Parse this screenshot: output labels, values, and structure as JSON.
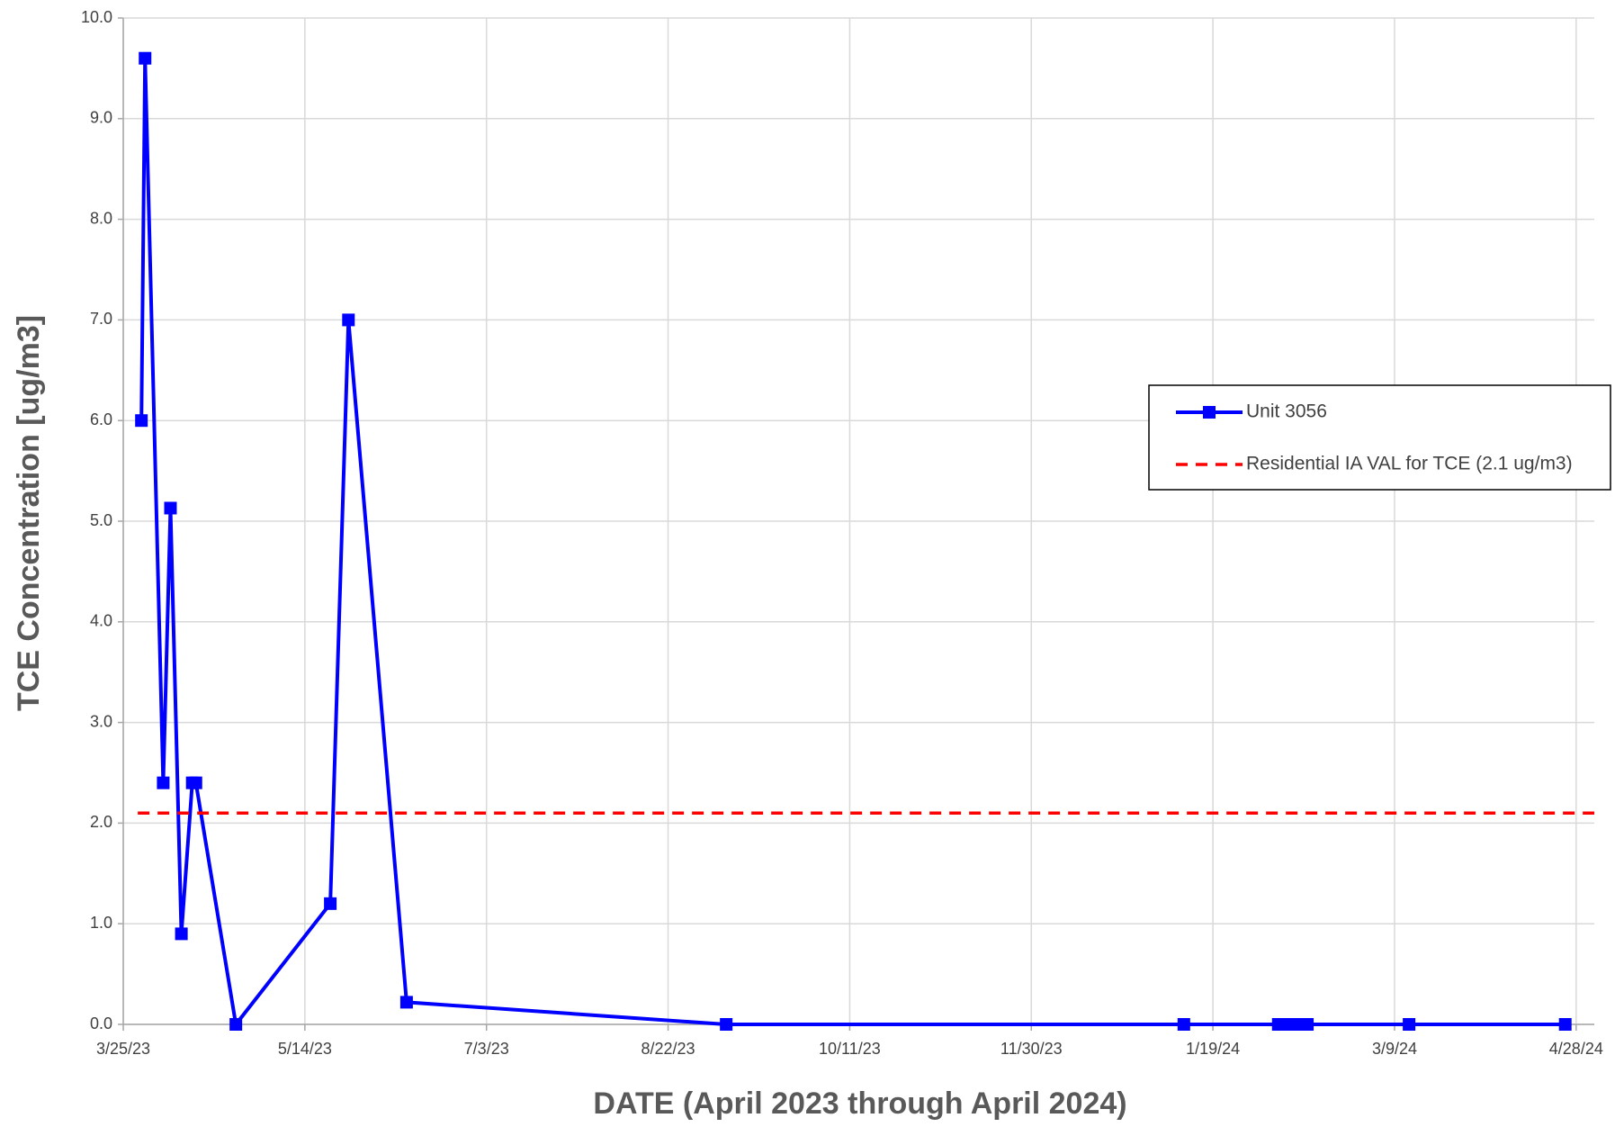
{
  "chart_data": {
    "type": "line",
    "xlabel": "DATE  (April 2023 through April 2024)",
    "ylabel": "TCE Concentration  [ug/m3]",
    "xlim": [
      "2023-03-25",
      "2024-05-03"
    ],
    "xticks": [
      {
        "value": "2023-03-25",
        "label": "3/25/23"
      },
      {
        "value": "2023-05-14",
        "label": "5/14/23"
      },
      {
        "value": "2023-07-03",
        "label": "7/3/23"
      },
      {
        "value": "2023-08-22",
        "label": "8/22/23"
      },
      {
        "value": "2023-10-11",
        "label": "10/11/23"
      },
      {
        "value": "2023-11-30",
        "label": "11/30/23"
      },
      {
        "value": "2024-01-19",
        "label": "1/19/24"
      },
      {
        "value": "2024-03-09",
        "label": "3/9/24"
      },
      {
        "value": "2024-04-28",
        "label": "4/28/24"
      }
    ],
    "ylim": [
      0,
      10
    ],
    "yticks": [
      {
        "value": 0,
        "label": "0.0"
      },
      {
        "value": 1,
        "label": "1.0"
      },
      {
        "value": 2,
        "label": "2.0"
      },
      {
        "value": 3,
        "label": "3.0"
      },
      {
        "value": 4,
        "label": "4.0"
      },
      {
        "value": 5,
        "label": "5.0"
      },
      {
        "value": 6,
        "label": "6.0"
      },
      {
        "value": 7,
        "label": "7.0"
      },
      {
        "value": 8,
        "label": "8.0"
      },
      {
        "value": 9,
        "label": "9.0"
      },
      {
        "value": 10,
        "label": "10.0"
      }
    ],
    "grid": true,
    "legend": "right",
    "series": [
      {
        "name": "Unit 3056",
        "color": "#0000ff",
        "marker": "square",
        "x": [
          "2023-03-30",
          "2023-03-31",
          "2023-04-05",
          "2023-04-07",
          "2023-04-10",
          "2023-04-13",
          "2023-04-14",
          "2023-04-25",
          "2023-05-21",
          "2023-05-26",
          "2023-06-11",
          "2023-09-07",
          "2024-01-11",
          "2024-02-06",
          "2024-02-08",
          "2024-02-10",
          "2024-02-12",
          "2024-02-14",
          "2024-03-13",
          "2024-04-25"
        ],
        "values": [
          6.0,
          9.6,
          2.4,
          5.13,
          0.9,
          2.4,
          2.4,
          0,
          1.2,
          7.0,
          0.22,
          0,
          0,
          0,
          0,
          0,
          0,
          0,
          0,
          0
        ]
      },
      {
        "name": "Residential IA VAL for TCE (2.1 ug/m3)",
        "color": "#ff0000",
        "dash": true,
        "x": [
          "2023-03-29",
          "2024-05-03"
        ],
        "values": [
          2.1,
          2.1
        ]
      }
    ]
  }
}
